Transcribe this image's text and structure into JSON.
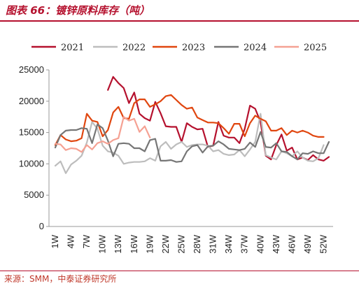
{
  "header": {
    "title": "图表 66：镀锌原料库存（吨）"
  },
  "footer": {
    "source": "来源：SMM，中泰证券研究所"
  },
  "chart_data": {
    "type": "line",
    "title": "图表 66：镀锌原料库存（吨）",
    "xlabel": "",
    "ylabel": "",
    "ylim": [
      0,
      25000
    ],
    "yticks": [
      0,
      5000,
      10000,
      15000,
      20000,
      25000
    ],
    "ytick_labels": [
      "0",
      "5000",
      "10000",
      "15000",
      "20000",
      "25000"
    ],
    "xtick_labels": [
      "1W",
      "4W",
      "7W",
      "10W",
      "13W",
      "16W",
      "19W",
      "22W",
      "25W",
      "28W",
      "31W",
      "34W",
      "37W",
      "40W",
      "43W",
      "46W",
      "49W",
      "52W"
    ],
    "categories": [
      "1W",
      "2W",
      "3W",
      "4W",
      "5W",
      "6W",
      "7W",
      "8W",
      "9W",
      "10W",
      "11W",
      "12W",
      "13W",
      "14W",
      "15W",
      "16W",
      "17W",
      "18W",
      "19W",
      "20W",
      "21W",
      "22W",
      "23W",
      "24W",
      "25W",
      "26W",
      "27W",
      "28W",
      "29W",
      "30W",
      "31W",
      "32W",
      "33W",
      "34W",
      "35W",
      "36W",
      "37W",
      "38W",
      "39W",
      "40W",
      "41W",
      "42W",
      "43W",
      "44W",
      "45W",
      "46W",
      "47W",
      "48W",
      "49W",
      "50W",
      "51W",
      "52W",
      "53W"
    ],
    "grid": false,
    "legend_position": "top",
    "series": [
      {
        "name": "2021",
        "color": "#b5112e",
        "values": [
          null,
          null,
          null,
          null,
          null,
          null,
          null,
          null,
          null,
          null,
          21800,
          23900,
          22900,
          22100,
          19700,
          21400,
          18000,
          17300,
          16900,
          19900,
          18100,
          16000,
          15900,
          15900,
          13500,
          16500,
          15900,
          15500,
          15600,
          12700,
          12900,
          16700,
          14500,
          14200,
          14200,
          13300,
          15600,
          19300,
          18800,
          16700,
          11300,
          10700,
          13000,
          14700,
          12100,
          12600,
          10700,
          11000,
          10600,
          11400,
          10700,
          10500,
          11100
        ]
      },
      {
        "name": "2022",
        "color": "#bdbdbd",
        "values": [
          9700,
          10400,
          8500,
          9900,
          10500,
          11300,
          13400,
          16700,
          15600,
          12900,
          12000,
          11800,
          11300,
          10000,
          10200,
          10300,
          10300,
          10400,
          10900,
          10500,
          12800,
          13500,
          12400,
          13100,
          13500,
          12700,
          13000,
          13100,
          13100,
          12900,
          12000,
          12200,
          11600,
          11400,
          11500,
          12200,
          11200,
          12300,
          13500,
          18000,
          11400,
          11000,
          10700,
          12000,
          11700,
          11200,
          12000,
          11000,
          10500,
          10400,
          10900,
          13000,
          null
        ]
      },
      {
        "name": "2023",
        "color": "#e0460f",
        "values": [
          13000,
          14600,
          13900,
          13600,
          13700,
          14100,
          18000,
          16900,
          16700,
          14400,
          15400,
          18200,
          19100,
          17300,
          17200,
          19700,
          20300,
          20300,
          19100,
          19500,
          20000,
          20800,
          21000,
          20200,
          19400,
          18800,
          19000,
          17400,
          17000,
          16600,
          16600,
          16500,
          15700,
          14800,
          16400,
          16400,
          14400,
          16500,
          17700,
          17200,
          16800,
          15300,
          15300,
          15700,
          14600,
          15300,
          15000,
          15300,
          15000,
          14500,
          14300,
          14300,
          null
        ]
      },
      {
        "name": "2024",
        "color": "#767676",
        "values": [
          12600,
          14600,
          15300,
          15400,
          15400,
          15700,
          15600,
          13300,
          16300,
          15700,
          13700,
          11200,
          13200,
          13300,
          13200,
          12500,
          12500,
          12000,
          13800,
          14000,
          10500,
          10500,
          10600,
          10300,
          10400,
          12000,
          12800,
          13000,
          11800,
          12800,
          12900,
          13600,
          13100,
          12400,
          12300,
          12200,
          12400,
          13400,
          12700,
          15100,
          12700,
          12600,
          13300,
          12000,
          11900,
          11200,
          10700,
          11700,
          11600,
          12000,
          11700,
          11700,
          13500
        ]
      },
      {
        "name": "2025",
        "color": "#f5a193",
        "values": [
          13200,
          13100,
          12200,
          12500,
          12400,
          11900,
          13000,
          12300,
          13300,
          13600,
          13200,
          13800,
          14100,
          17500,
          16900,
          17200,
          15100,
          16000,
          14200,
          null,
          null,
          null,
          null,
          null,
          null,
          null,
          null,
          null,
          null,
          null,
          null,
          null,
          null,
          null,
          null,
          null,
          null,
          null,
          null,
          null,
          null,
          null,
          null,
          null,
          null,
          null,
          null,
          null,
          null,
          null,
          null,
          null,
          null
        ]
      }
    ]
  }
}
